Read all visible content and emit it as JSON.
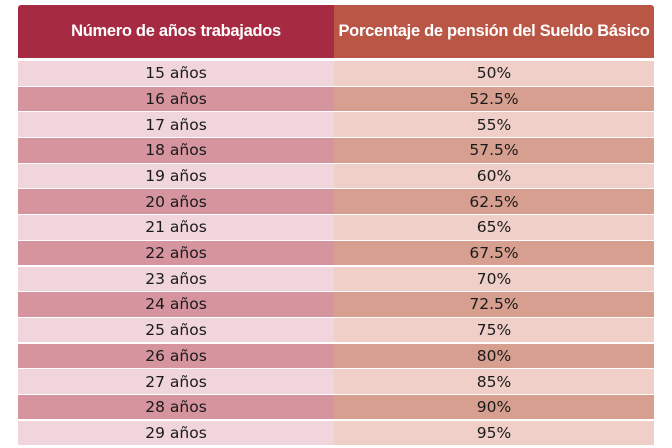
{
  "table": {
    "headers": {
      "years": "Número de años trabajados",
      "percentage": "Porcentaje de pensión del Sueldo Básico"
    },
    "rows": [
      {
        "years": "15 años",
        "percentage": "50%"
      },
      {
        "years": "16 años",
        "percentage": "52.5%"
      },
      {
        "years": "17 años",
        "percentage": "55%"
      },
      {
        "years": "18 años",
        "percentage": "57.5%"
      },
      {
        "years": "19 años",
        "percentage": "60%"
      },
      {
        "years": "20 años",
        "percentage": "62.5%"
      },
      {
        "years": "21 años",
        "percentage": "65%"
      },
      {
        "years": "22 años",
        "percentage": "67.5%"
      },
      {
        "years": "23 años",
        "percentage": "70%"
      },
      {
        "years": "24 años",
        "percentage": "72.5%"
      },
      {
        "years": "25 años",
        "percentage": "75%"
      },
      {
        "years": "26 años",
        "percentage": "80%"
      },
      {
        "years": "27 años",
        "percentage": "85%"
      },
      {
        "years": "28 años",
        "percentage": "90%"
      },
      {
        "years": "29 años",
        "percentage": "95%"
      }
    ]
  },
  "colors": {
    "header_left": "#a52a42",
    "header_right": "#b95646",
    "row_light_left": "#f0d5dc",
    "row_light_right": "#efcfc8",
    "row_dark_left": "#d6949f",
    "row_dark_right": "#d79f8f"
  }
}
